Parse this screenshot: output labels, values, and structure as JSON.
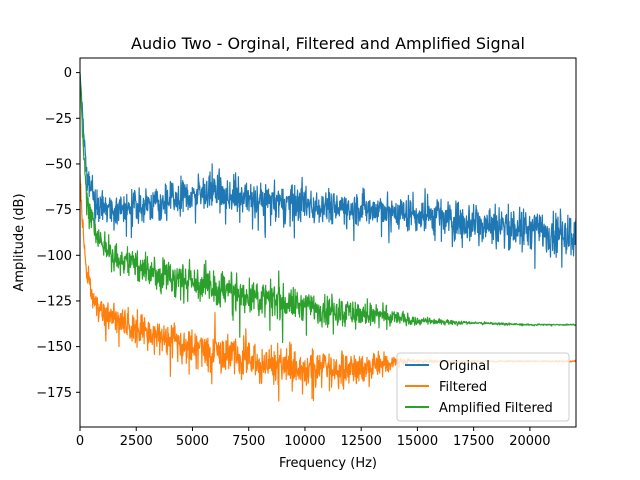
{
  "chart_data": {
    "type": "line",
    "title": "Audio Two - Orginal, Filtered and Amplified Signal",
    "xlabel": "Frequency (Hz)",
    "ylabel": "Amplitude (dB)",
    "xlim": [
      0,
      22050
    ],
    "ylim": [
      -194,
      8
    ],
    "xticks": [
      0,
      2500,
      5000,
      7500,
      10000,
      12500,
      15000,
      17500,
      20000
    ],
    "xtick_labels": [
      "0",
      "2500",
      "5000",
      "7500",
      "10000",
      "12500",
      "15000",
      "17500",
      "20000"
    ],
    "yticks": [
      0,
      -25,
      -50,
      -75,
      -100,
      -125,
      -150,
      -175
    ],
    "ytick_labels": [
      "0",
      "−25",
      "−50",
      "−75",
      "−100",
      "−125",
      "−150",
      "−175"
    ],
    "grid": false,
    "legend_position": "lower-right",
    "series": [
      {
        "name": "Original",
        "color": "#1f77b4",
        "envelope_x": [
          0,
          100,
          300,
          700,
          1500,
          3000,
          5000,
          6000,
          8000,
          10000,
          12500,
          15000,
          17500,
          20000,
          22050
        ],
        "envelope_center": [
          0,
          -20,
          -55,
          -72,
          -75,
          -72,
          -67,
          -66,
          -70,
          -72,
          -74,
          -78,
          -82,
          -86,
          -88
        ],
        "envelope_spread": [
          0,
          6,
          10,
          12,
          12,
          12,
          14,
          14,
          13,
          13,
          13,
          14,
          15,
          16,
          16
        ]
      },
      {
        "name": "Filtered",
        "color": "#ff7f0e",
        "envelope_x": [
          0,
          100,
          300,
          700,
          1500,
          3000,
          5000,
          7500,
          10000,
          12500,
          13500,
          14000,
          15000,
          17500,
          22050
        ],
        "envelope_center": [
          -55,
          -80,
          -110,
          -128,
          -135,
          -142,
          -150,
          -158,
          -163,
          -162,
          -160,
          -158,
          -158,
          -158,
          -158
        ],
        "envelope_spread": [
          4,
          8,
          10,
          10,
          11,
          12,
          13,
          14,
          14,
          12,
          8,
          3,
          1,
          0.5,
          0.5
        ]
      },
      {
        "name": "Amplified Filtered",
        "color": "#2ca02c",
        "envelope_x": [
          0,
          100,
          300,
          700,
          1500,
          3000,
          5000,
          7500,
          10000,
          12500,
          14000,
          15000,
          17500,
          20000,
          22050
        ],
        "envelope_center": [
          0,
          -30,
          -70,
          -90,
          -100,
          -108,
          -115,
          -122,
          -128,
          -132,
          -134,
          -136,
          -137,
          -138,
          -138
        ],
        "envelope_spread": [
          2,
          8,
          10,
          10,
          11,
          12,
          13,
          13,
          12,
          10,
          6,
          3,
          1,
          0.5,
          0.5
        ]
      }
    ]
  }
}
